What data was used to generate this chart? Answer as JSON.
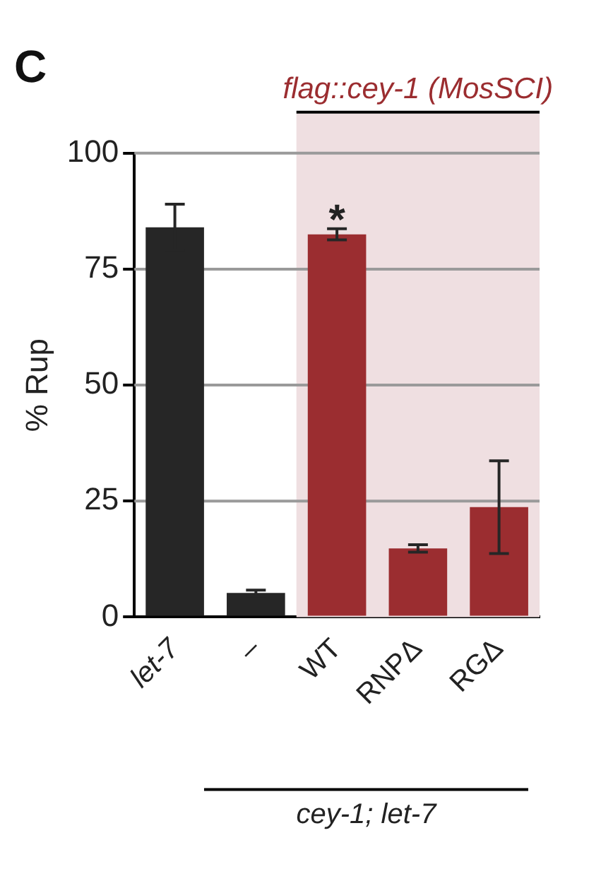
{
  "chart_data": {
    "type": "bar",
    "title": "C",
    "ylabel": "% Rup",
    "categories": [
      "let-7",
      "–",
      "WT",
      "RNPΔ",
      "RGΔ"
    ],
    "values": [
      84,
      5.2,
      82.5,
      14.8,
      23.7
    ],
    "errors": [
      5,
      0.6,
      1.2,
      0.8,
      10
    ],
    "colors": [
      "#262626",
      "#262626",
      "#9b2d30",
      "#9b2d30",
      "#9b2d30"
    ],
    "ylim": [
      0,
      100
    ],
    "yticks": [
      0,
      25,
      50,
      75,
      100
    ],
    "grid": "y",
    "legend": false,
    "bands": [
      {
        "axis": "x",
        "from": "WT",
        "to": "RGΔ",
        "label": "flag::cey-1 (MosSCI)",
        "color": "#efdfe1"
      }
    ],
    "annotations": [
      {
        "text": "*",
        "x": "WT",
        "y": 85
      },
      "cey-1; let-7"
    ]
  }
}
